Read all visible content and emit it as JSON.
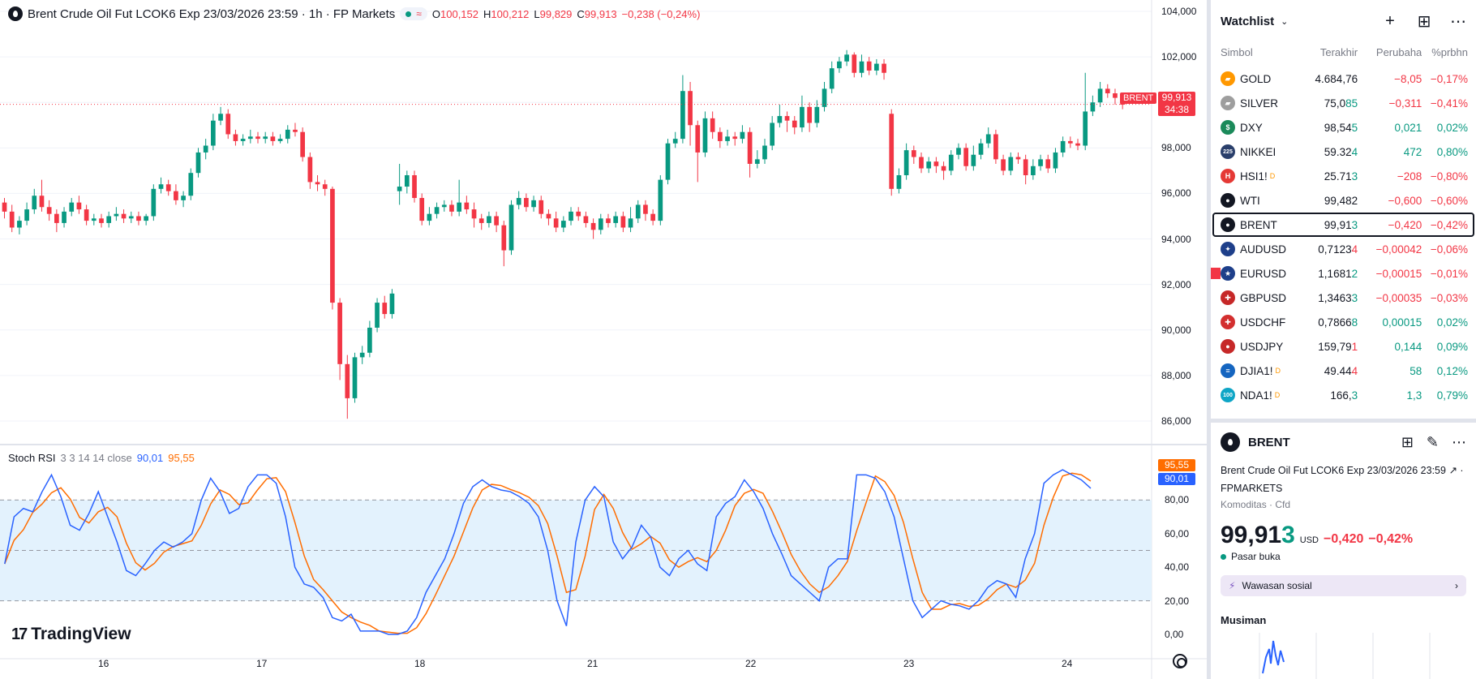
{
  "chart": {
    "title": "Brent Crude Oil Fut LCOK6 Exp 23/03/2026 23:59 · 1h · FP Markets",
    "ohlc": [
      {
        "k": "O",
        "v": "100,152"
      },
      {
        "k": "H",
        "v": "100,212"
      },
      {
        "k": "L",
        "v": "99,829"
      },
      {
        "k": "C",
        "v": "99,913"
      },
      {
        "k": "",
        "v": "−0,238 (−0,24%)"
      }
    ],
    "price_axis": [
      "104,000",
      "102,000",
      "100,000",
      "98,000",
      "96,000",
      "94,000",
      "92,000",
      "90,000",
      "88,000",
      "86,000"
    ],
    "rsi_axis": [
      "80,00",
      "60,00",
      "40,00",
      "20,00",
      "0,00"
    ],
    "time_axis": [
      "16",
      "17",
      "18",
      "21",
      "22",
      "23",
      "24"
    ],
    "current_price": "99,913",
    "countdown": "34:38",
    "symbol_tag": "BRENT",
    "indicator": {
      "name": "Stoch RSI",
      "params": "3 3 14 14 close",
      "k": "90,01",
      "d": "95,55"
    },
    "brand": "TradingView",
    "colors": {
      "up": "#089981",
      "down": "#f23645",
      "k": "#2962ff",
      "d": "#ff6d00",
      "band": "#e3f2fd"
    }
  },
  "chart_data": {
    "type": "candlestick",
    "price_range": [
      85,
      104.5
    ],
    "candles": [
      [
        95.6,
        95.2,
        95.8,
        94.9
      ],
      [
        95.2,
        94.5,
        95.5,
        94.3
      ],
      [
        94.5,
        94.8,
        95.0,
        94.2
      ],
      [
        94.8,
        95.3,
        95.6,
        94.6
      ],
      [
        95.3,
        95.9,
        96.2,
        95.1
      ],
      [
        95.9,
        95.4,
        96.6,
        95.2
      ],
      [
        95.4,
        95.1,
        95.7,
        94.8
      ],
      [
        95.1,
        94.7,
        95.3,
        94.3
      ],
      [
        94.7,
        95.2,
        95.4,
        94.5
      ],
      [
        95.2,
        95.6,
        95.8,
        95.0
      ],
      [
        95.6,
        95.3,
        95.9,
        95.1
      ],
      [
        95.3,
        94.8,
        95.5,
        94.6
      ],
      [
        94.8,
        94.9,
        95.1,
        94.6
      ],
      [
        94.9,
        94.7,
        95.1,
        94.5
      ],
      [
        94.7,
        95.0,
        95.2,
        94.5
      ],
      [
        95.0,
        95.1,
        95.4,
        94.8
      ],
      [
        95.1,
        94.9,
        95.3,
        94.7
      ],
      [
        94.9,
        95.0,
        95.2,
        94.7
      ],
      [
        95.0,
        94.8,
        95.2,
        94.6
      ],
      [
        94.8,
        95.0,
        95.1,
        94.6
      ],
      [
        95.0,
        96.2,
        96.4,
        94.8
      ],
      [
        96.2,
        96.4,
        96.7,
        96.0
      ],
      [
        96.4,
        96.1,
        96.6,
        95.9
      ],
      [
        96.1,
        95.7,
        96.4,
        95.5
      ],
      [
        95.7,
        95.9,
        96.1,
        95.4
      ],
      [
        95.9,
        96.9,
        97.1,
        95.7
      ],
      [
        96.9,
        97.8,
        98.0,
        96.7
      ],
      [
        97.8,
        98.1,
        98.4,
        97.5
      ],
      [
        98.1,
        99.2,
        99.5,
        97.9
      ],
      [
        99.2,
        99.5,
        99.8,
        99.0
      ],
      [
        99.5,
        98.6,
        99.7,
        98.4
      ],
      [
        98.6,
        98.3,
        98.8,
        98.1
      ],
      [
        98.3,
        98.4,
        98.6,
        98.1
      ],
      [
        98.4,
        98.5,
        98.8,
        98.2
      ],
      [
        98.5,
        98.4,
        98.7,
        98.2
      ],
      [
        98.4,
        98.5,
        98.7,
        98.2
      ],
      [
        98.5,
        98.3,
        98.7,
        98.1
      ],
      [
        98.3,
        98.4,
        98.6,
        98.2
      ],
      [
        98.4,
        98.8,
        99.0,
        98.2
      ],
      [
        98.8,
        98.7,
        99.1,
        98.5
      ],
      [
        98.7,
        97.6,
        98.9,
        97.4
      ],
      [
        97.6,
        96.5,
        97.8,
        96.2
      ],
      [
        96.5,
        96.4,
        96.8,
        96.1
      ],
      [
        96.4,
        96.2,
        96.6,
        95.9
      ],
      [
        96.2,
        91.2,
        96.3,
        90.9
      ],
      [
        91.2,
        88.5,
        91.4,
        87.8
      ],
      [
        88.5,
        87.0,
        88.9,
        86.1
      ],
      [
        87.0,
        88.8,
        89.0,
        86.8
      ],
      [
        88.8,
        89.0,
        89.3,
        88.5
      ],
      [
        89.0,
        90.1,
        90.4,
        88.8
      ],
      [
        90.1,
        91.2,
        91.4,
        89.9
      ],
      [
        91.2,
        90.7,
        91.5,
        90.5
      ],
      [
        90.7,
        91.6,
        91.8,
        90.5
      ],
      [
        96.1,
        96.3,
        97.3,
        95.5
      ],
      [
        96.3,
        96.8,
        97.0,
        96.0
      ],
      [
        96.8,
        95.8,
        97.0,
        95.6
      ],
      [
        95.8,
        94.8,
        96.0,
        94.6
      ],
      [
        94.8,
        95.1,
        95.4,
        94.6
      ],
      [
        95.1,
        95.4,
        95.6,
        94.9
      ],
      [
        95.4,
        95.5,
        95.7,
        95.2
      ],
      [
        95.5,
        95.2,
        95.7,
        95.0
      ],
      [
        95.2,
        95.6,
        96.6,
        95.0
      ],
      [
        95.6,
        95.3,
        95.9,
        95.1
      ],
      [
        95.3,
        94.9,
        95.6,
        94.5
      ],
      [
        94.9,
        94.7,
        95.1,
        94.4
      ],
      [
        94.7,
        95.0,
        95.2,
        94.5
      ],
      [
        95.0,
        94.6,
        95.2,
        94.3
      ],
      [
        94.6,
        93.5,
        94.8,
        92.8
      ],
      [
        93.5,
        95.5,
        95.7,
        93.3
      ],
      [
        95.5,
        95.8,
        96.1,
        95.3
      ],
      [
        95.8,
        95.4,
        96.0,
        95.2
      ],
      [
        95.4,
        95.7,
        95.9,
        95.2
      ],
      [
        95.7,
        95.1,
        95.9,
        94.9
      ],
      [
        95.1,
        94.9,
        95.3,
        94.6
      ],
      [
        94.9,
        94.5,
        95.2,
        94.3
      ],
      [
        94.5,
        94.8,
        95.0,
        94.3
      ],
      [
        94.8,
        95.2,
        95.4,
        94.6
      ],
      [
        95.2,
        95.0,
        95.4,
        94.8
      ],
      [
        95.0,
        94.7,
        95.2,
        94.5
      ],
      [
        94.7,
        94.4,
        94.9,
        94.0
      ],
      [
        94.4,
        94.9,
        95.1,
        94.2
      ],
      [
        94.9,
        94.7,
        95.1,
        94.5
      ],
      [
        94.7,
        95.0,
        95.2,
        94.5
      ],
      [
        95.0,
        94.5,
        95.2,
        94.3
      ],
      [
        94.5,
        94.9,
        95.4,
        94.3
      ],
      [
        94.9,
        95.5,
        95.7,
        94.7
      ],
      [
        95.5,
        95.1,
        95.7,
        94.8
      ],
      [
        95.1,
        94.8,
        95.3,
        94.6
      ],
      [
        94.8,
        96.6,
        96.8,
        94.6
      ],
      [
        96.6,
        98.2,
        98.4,
        96.4
      ],
      [
        98.2,
        98.4,
        98.7,
        98.0
      ],
      [
        98.4,
        100.5,
        101.2,
        98.2
      ],
      [
        100.5,
        99.0,
        100.9,
        98.1
      ],
      [
        99.0,
        97.8,
        99.2,
        96.5
      ],
      [
        97.8,
        99.3,
        99.6,
        97.6
      ],
      [
        99.3,
        98.7,
        99.6,
        98.4
      ],
      [
        98.7,
        98.3,
        98.9,
        98.0
      ],
      [
        98.3,
        98.5,
        98.8,
        98.1
      ],
      [
        98.5,
        98.4,
        98.7,
        98.1
      ],
      [
        98.4,
        98.7,
        99.0,
        98.2
      ],
      [
        98.7,
        97.3,
        98.9,
        96.7
      ],
      [
        97.3,
        97.5,
        97.9,
        97.1
      ],
      [
        97.5,
        98.1,
        98.4,
        97.3
      ],
      [
        98.1,
        99.1,
        99.4,
        97.9
      ],
      [
        99.1,
        99.4,
        99.9,
        98.9
      ],
      [
        99.4,
        99.2,
        99.6,
        98.7
      ],
      [
        99.2,
        98.9,
        99.4,
        98.6
      ],
      [
        98.9,
        99.8,
        100.3,
        98.7
      ],
      [
        99.8,
        99.1,
        100.0,
        98.7
      ],
      [
        99.1,
        99.8,
        100.1,
        98.9
      ],
      [
        99.8,
        100.6,
        100.9,
        99.6
      ],
      [
        100.6,
        101.5,
        101.8,
        100.4
      ],
      [
        101.5,
        101.8,
        102.0,
        101.3
      ],
      [
        101.8,
        102.1,
        102.3,
        101.6
      ],
      [
        102.1,
        101.3,
        102.2,
        101.1
      ],
      [
        101.3,
        101.8,
        102.1,
        101.1
      ],
      [
        101.8,
        101.4,
        102.0,
        101.2
      ],
      [
        101.4,
        101.7,
        101.9,
        101.2
      ],
      [
        101.7,
        101.3,
        101.9,
        101.0
      ],
      [
        99.5,
        96.2,
        99.7,
        95.9
      ],
      [
        96.2,
        96.8,
        97.1,
        96.0
      ],
      [
        96.8,
        97.9,
        98.2,
        96.6
      ],
      [
        97.9,
        97.6,
        98.1,
        97.3
      ],
      [
        97.6,
        97.1,
        97.8,
        96.9
      ],
      [
        97.1,
        97.4,
        97.6,
        96.9
      ],
      [
        97.4,
        97.2,
        97.6,
        96.9
      ],
      [
        97.2,
        97.0,
        97.4,
        96.6
      ],
      [
        97.0,
        97.7,
        97.9,
        96.8
      ],
      [
        97.7,
        98.0,
        98.2,
        97.5
      ],
      [
        98.0,
        97.2,
        98.2,
        97.0
      ],
      [
        97.2,
        97.7,
        98.1,
        97.0
      ],
      [
        97.7,
        98.2,
        98.4,
        97.5
      ],
      [
        98.2,
        98.6,
        98.9,
        98.0
      ],
      [
        98.6,
        97.5,
        98.8,
        97.3
      ],
      [
        97.5,
        97.0,
        97.7,
        96.8
      ],
      [
        97.0,
        97.6,
        97.8,
        96.8
      ],
      [
        97.6,
        97.5,
        97.8,
        97.3
      ],
      [
        97.5,
        96.8,
        97.7,
        96.4
      ],
      [
        96.8,
        97.2,
        97.5,
        96.6
      ],
      [
        97.2,
        97.5,
        97.7,
        97.0
      ],
      [
        97.5,
        97.1,
        97.7,
        96.9
      ],
      [
        97.1,
        97.8,
        98.0,
        96.9
      ],
      [
        97.8,
        98.3,
        98.5,
        97.6
      ],
      [
        98.3,
        98.2,
        98.5,
        98.0
      ],
      [
        98.2,
        98.1,
        98.4,
        97.9
      ],
      [
        98.1,
        99.6,
        101.3,
        97.9
      ],
      [
        99.6,
        100.0,
        100.3,
        99.4
      ],
      [
        100.0,
        100.6,
        100.9,
        99.8
      ],
      [
        100.6,
        100.4,
        100.8,
        100.2
      ],
      [
        100.4,
        100.2,
        100.6,
        99.9
      ],
      [
        100.2,
        99.9,
        100.4,
        99.7
      ]
    ],
    "stoch_k": [
      42,
      70,
      75,
      73,
      85,
      95,
      82,
      65,
      62,
      72,
      85,
      70,
      55,
      38,
      35,
      42,
      50,
      55,
      52,
      55,
      60,
      80,
      93,
      85,
      72,
      75,
      88,
      95,
      95,
      90,
      70,
      40,
      30,
      28,
      22,
      10,
      8,
      12,
      2,
      2,
      2,
      0,
      0,
      2,
      10,
      25,
      35,
      45,
      60,
      78,
      88,
      92,
      88,
      86,
      85,
      82,
      78,
      70,
      50,
      20,
      5,
      55,
      80,
      88,
      82,
      55,
      45,
      52,
      65,
      58,
      40,
      35,
      45,
      50,
      42,
      38,
      70,
      78,
      82,
      92,
      85,
      75,
      60,
      48,
      35,
      30,
      25,
      20,
      40,
      45,
      45,
      95,
      95,
      93,
      85,
      70,
      45,
      20,
      10,
      15,
      20,
      18,
      17,
      15,
      20,
      28,
      32,
      30,
      22,
      45,
      60,
      90,
      95,
      98,
      95,
      92,
      87
    ]
  },
  "watchlist": {
    "title": "Watchlist",
    "columns": [
      "Simbol",
      "Terakhir",
      "Perubaha",
      "%prbhn"
    ],
    "items": [
      {
        "symbol": "GOLD",
        "last_main": "4.684,",
        "last_tail": "76",
        "last_tone": "",
        "change": "−8,05",
        "pct": "−0,17%",
        "dir": "neg",
        "icon_bg": "#ff9800",
        "icon": "ingot-icon",
        "glyph": "▰",
        "sup": ""
      },
      {
        "symbol": "SILVER",
        "last_main": "75,0",
        "last_tail": "85",
        "last_tone": "pos",
        "change": "−0,311",
        "pct": "−0,41%",
        "dir": "neg",
        "icon_bg": "#9e9e9e",
        "icon": "ingot-icon",
        "glyph": "▰",
        "sup": ""
      },
      {
        "symbol": "DXY",
        "last_main": "98,54",
        "last_tail": "5",
        "last_tone": "pos",
        "change": "0,021",
        "pct": "0,02%",
        "dir": "pos",
        "icon_bg": "#1b8a5a",
        "icon": "dollar-icon",
        "glyph": "$",
        "sup": ""
      },
      {
        "symbol": "NIKKEI",
        "last_main": "59.32",
        "last_tail": "4",
        "last_tone": "pos",
        "change": "472",
        "pct": "0,80%",
        "dir": "pos",
        "icon_bg": "#2a3f6b",
        "icon": "index-225-icon",
        "glyph": "225",
        "sup": ""
      },
      {
        "symbol": "HSI1!",
        "last_main": "25.71",
        "last_tail": "3",
        "last_tone": "pos",
        "change": "−208",
        "pct": "−0,80%",
        "dir": "neg",
        "icon_bg": "#e53935",
        "icon": "hsi-icon",
        "glyph": "H",
        "sup": "D"
      },
      {
        "symbol": "WTI",
        "last_main": "99,482",
        "last_tail": "",
        "last_tone": "pos",
        "change": "−0,600",
        "pct": "−0,60%",
        "dir": "neg",
        "icon_bg": "#131722",
        "icon": "oil-drop-icon",
        "glyph": "●",
        "sup": ""
      },
      {
        "symbol": "BRENT",
        "last_main": "99,91",
        "last_tail": "3",
        "last_tone": "pos",
        "change": "−0,420",
        "pct": "−0,42%",
        "dir": "neg",
        "icon_bg": "#131722",
        "icon": "oil-drop-icon",
        "glyph": "●",
        "sup": ""
      },
      {
        "symbol": "AUDUSD",
        "last_main": "0,7123",
        "last_tail": "4",
        "last_tone": "neg",
        "change": "−0,00042",
        "pct": "−0,06%",
        "dir": "neg",
        "icon_bg": "#1e3f8a",
        "icon": "flag-au-us-icon",
        "glyph": "✦",
        "sup": ""
      },
      {
        "symbol": "EURUSD",
        "last_main": "1,1681",
        "last_tail": "2",
        "last_tone": "pos",
        "change": "−0,00015",
        "pct": "−0,01%",
        "dir": "neg",
        "icon_bg": "#1e3f8a",
        "icon": "flag-eu-us-icon",
        "glyph": "★",
        "sup": ""
      },
      {
        "symbol": "GBPUSD",
        "last_main": "1,3463",
        "last_tail": "3",
        "last_tone": "pos",
        "change": "−0,00035",
        "pct": "−0,03%",
        "dir": "neg",
        "icon_bg": "#c62828",
        "icon": "flag-gb-us-icon",
        "glyph": "✚",
        "sup": ""
      },
      {
        "symbol": "USDCHF",
        "last_main": "0,7866",
        "last_tail": "8",
        "last_tone": "pos",
        "change": "0,00015",
        "pct": "0,02%",
        "dir": "pos",
        "icon_bg": "#d32f2f",
        "icon": "flag-us-ch-icon",
        "glyph": "✚",
        "sup": ""
      },
      {
        "symbol": "USDJPY",
        "last_main": "159,79",
        "last_tail": "1",
        "last_tone": "neg",
        "change": "0,144",
        "pct": "0,09%",
        "dir": "pos",
        "icon_bg": "#c62828",
        "icon": "flag-us-jp-icon",
        "glyph": "●",
        "sup": ""
      },
      {
        "symbol": "DJIA1!",
        "last_main": "49.44",
        "last_tail": "4",
        "last_tone": "neg",
        "change": "58",
        "pct": "0,12%",
        "dir": "pos",
        "icon_bg": "#1565c0",
        "icon": "flag-us-icon",
        "glyph": "≡",
        "sup": "D"
      },
      {
        "symbol": "NDA1!",
        "last_main": "166,",
        "last_tail": "3",
        "last_tone": "pos",
        "change": "1,3",
        "pct": "0,79%",
        "dir": "pos",
        "icon_bg": "#0ea5c6",
        "icon": "index-100-icon",
        "glyph": "100",
        "sup": "D"
      }
    ]
  },
  "details": {
    "symbol": "BRENT",
    "description": "Brent Crude Oil Fut LCOK6 Exp 23/03/2026 23:59",
    "exchange": "FPMARKETS",
    "category": "Komoditas",
    "type": "Cfd",
    "price_main": "99,91",
    "price_tail": "3",
    "currency": "USD",
    "change": "−0,420",
    "pct": "−0,42%",
    "status": "Pasar buka",
    "insight": "Wawasan sosial",
    "seasonal": "Musiman"
  }
}
